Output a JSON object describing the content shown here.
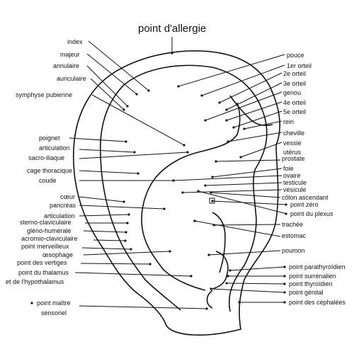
{
  "title": "point d'allergie",
  "labels_left": [
    "index",
    "majeur",
    "annulaire",
    "auriculaire",
    "symphyse pubienne",
    "poignet",
    "articulation",
    "sacro-iliaque",
    "cage thoracique",
    "coude",
    "cœur",
    "pancréas",
    "articulation",
    "sterno-claviculaire",
    "gléno-humérale",
    "acromio-claviculaire",
    "point merveilleux",
    "œsophage",
    "point des vertiges",
    "point du thalamus",
    "et de l'hypothalamus",
    "point maître",
    "sensoriel"
  ],
  "labels_right": [
    "pouce",
    "1er orteil",
    "2e orteil",
    "3e orteil",
    "genou",
    "4e orteil",
    "5e orteil",
    "rein",
    "cheville",
    "vessie",
    "utérus",
    "prostate",
    "foie",
    "ovaire",
    "testicule",
    "vésicule",
    "côlon ascendant",
    "point zéro",
    "point du plexus",
    "trachée",
    "estomac",
    "poumon",
    "point parathyroïdien",
    "point surrénalien",
    "point thyroïdien",
    "point génital",
    "point des céphalées"
  ]
}
